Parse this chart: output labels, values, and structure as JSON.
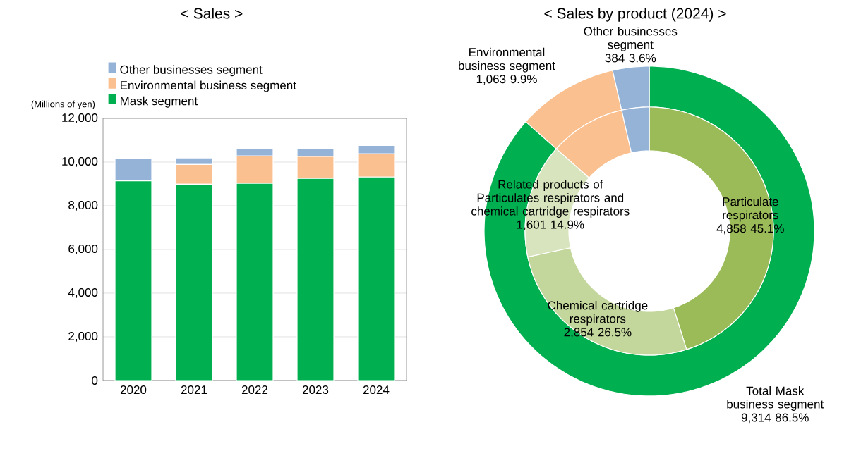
{
  "chart_data": [
    {
      "type": "bar",
      "title": "< Sales >",
      "ylabel": "(Millions of yen)",
      "stacked": true,
      "grid": "y",
      "legend": "top",
      "categories": [
        "2020",
        "2021",
        "2022",
        "2023",
        "2024"
      ],
      "series": [
        {
          "name": "Mask segment",
          "color": "#00b050",
          "values": [
            9140,
            8990,
            9030,
            9250,
            9314
          ]
        },
        {
          "name": "Environmental business segment",
          "color": "#fac090",
          "values": [
            0,
            900,
            1250,
            1010,
            1063
          ]
        },
        {
          "name": "Other businesses segment",
          "color": "#95b3d7",
          "values": [
            1010,
            300,
            320,
            340,
            384
          ]
        }
      ],
      "ylim": [
        0,
        12000
      ],
      "yticks": [
        0,
        {
          "value": 2000,
          "label": "2,000"
        },
        {
          "value": 4000,
          "label": "4,000"
        },
        {
          "value": 6000,
          "label": "6,000"
        },
        {
          "value": 8000,
          "label": "8,000"
        },
        {
          "value": 10000,
          "label": "10,000"
        },
        {
          "value": 12000,
          "label": "12,000"
        }
      ]
    },
    {
      "type": "donut",
      "title": "< Sales by product (2024) >",
      "categories": [
        "Total Mask business segment",
        "Environmental business segment",
        "Other businesses segment"
      ],
      "values": [
        9314,
        1063,
        384
      ],
      "value_labels": [
        "9,314 86.5%",
        "1,063 9.9%",
        "384 3.6%"
      ],
      "colors": [
        "#00b050",
        "#fac090",
        "#95b3d7"
      ]
    },
    {
      "type": "donut",
      "categories": [
        "Particulate respirators",
        "Chemical cartridge respirators",
        "Related products of Particulates respirators and chemical cartridge respirators",
        null,
        null
      ],
      "values": [
        4858,
        2854,
        1601,
        1063,
        384
      ],
      "value_labels": [
        "4,858 45.1%",
        "2,854 26.5%",
        "1,601 14.9%",
        null,
        null
      ],
      "colors": [
        "#9bbb59",
        "#c3d69b",
        "#d7e4bd",
        "#fac090",
        "#95b3d7"
      ]
    }
  ]
}
